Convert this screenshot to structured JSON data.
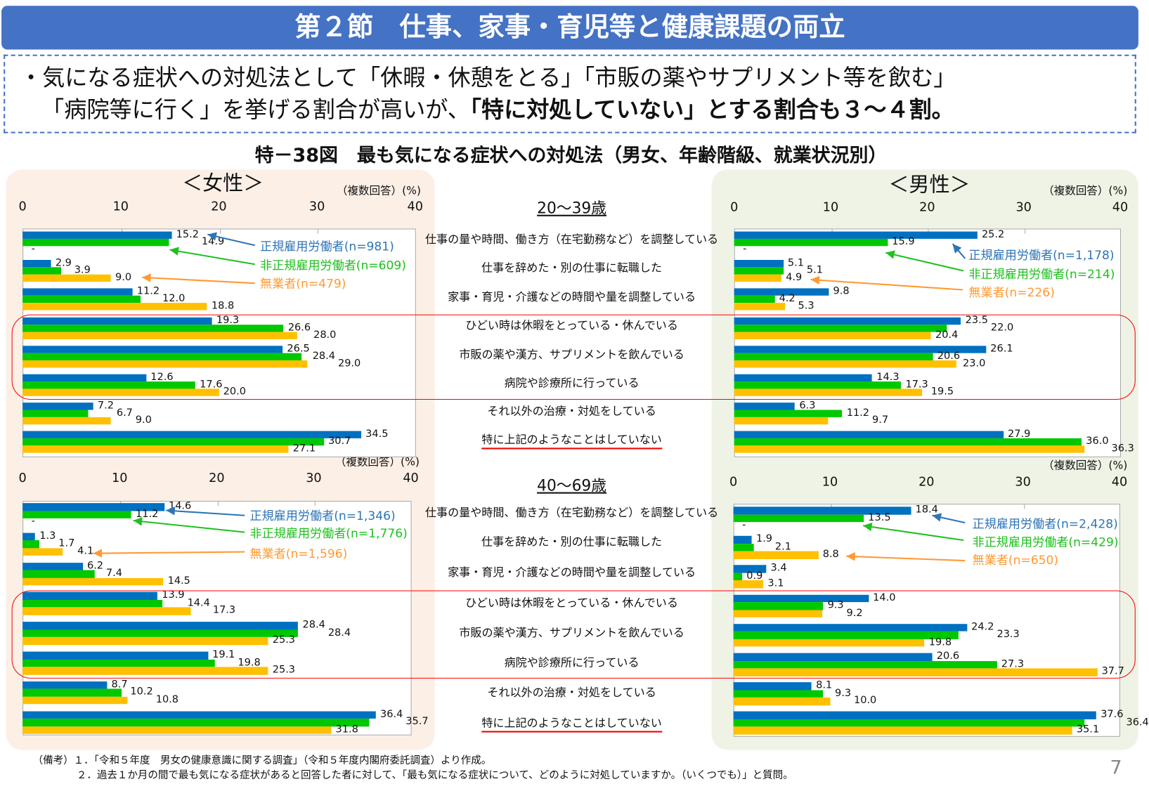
{
  "header": {
    "title": "第２節　仕事、家事・育児等と健康課題の両立"
  },
  "summary": {
    "line1": "・気になる症状への対処法として「休暇・休憩をとる」「市販の薬やサプリメント等を飲む」",
    "line2_normal": "「病院等に行く」を挙げる割合が高いが、",
    "line2_bold": "「特に対処していない」とする割合も３～４割。"
  },
  "figure_title": "特－38図　最も気になる症状への対処法（男女、年齢階級、就業状況別）",
  "panels": {
    "female": "＜女性＞",
    "male": "＜男性＞"
  },
  "unit_label": "（複数回答）(%)",
  "age_groups": [
    "20～39歳",
    "40～69歳"
  ],
  "colors": {
    "regular": "#0070c0",
    "nonregular": "#00c800",
    "unemployed": "#ffc000",
    "legend_regular": "#2e75b6",
    "legend_nonregular": "#1fc01f",
    "legend_unemployed": "#ff9933",
    "highlight": "#ff0000"
  },
  "chart_data": [
    {
      "type": "bar",
      "orientation": "horizontal",
      "panel": "女性",
      "age": "20～39歳",
      "xlim": [
        0,
        40
      ],
      "xticks": [
        "0",
        "10",
        "20",
        "30",
        "40"
      ],
      "grid": false,
      "categories": [
        "仕事の量や時間、働き方（在宅勤務など）を調整している",
        "仕事を辞めた・別の仕事に転職した",
        "家事・育児・介護などの時間や量を調整している",
        "ひどい時は休暇をとっている・休んでいる",
        "市販の薬や漢方、サプリメントを飲んでいる",
        "病院や診療所に行っている",
        "それ以外の治療・対処をしている",
        "特に上記のようなことはしていない"
      ],
      "series": [
        {
          "name": "正規雇用労働者(n=981)",
          "values": [
            15.2,
            2.9,
            11.2,
            19.3,
            26.5,
            12.6,
            7.2,
            34.5
          ]
        },
        {
          "name": "非正規雇用労働者(n=609)",
          "values": [
            14.9,
            3.9,
            12.0,
            26.6,
            28.4,
            17.6,
            6.7,
            30.7
          ]
        },
        {
          "name": "無業者(n=479)",
          "values": [
            null,
            9.0,
            18.8,
            28.0,
            29.0,
            20.0,
            9.0,
            27.1
          ]
        }
      ]
    },
    {
      "type": "bar",
      "orientation": "horizontal",
      "panel": "男性",
      "age": "20～39歳",
      "xlim": [
        0,
        40
      ],
      "xticks": [
        "0",
        "10",
        "20",
        "30",
        "40"
      ],
      "grid": false,
      "categories": [
        "仕事の量や時間、働き方（在宅勤務など）を調整している",
        "仕事を辞めた・別の仕事に転職した",
        "家事・育児・介護などの時間や量を調整している",
        "ひどい時は休暇をとっている・休んでいる",
        "市販の薬や漢方、サプリメントを飲んでいる",
        "病院や診療所に行っている",
        "それ以外の治療・対処をしている",
        "特に上記のようなことはしていない"
      ],
      "series": [
        {
          "name": "正規雇用労働者(n=1,178)",
          "values": [
            25.2,
            5.1,
            9.8,
            23.5,
            26.1,
            14.3,
            6.3,
            27.9
          ]
        },
        {
          "name": "非正規雇用労働者(n=214)",
          "values": [
            15.9,
            5.1,
            4.2,
            22.0,
            20.6,
            17.3,
            11.2,
            36.0
          ]
        },
        {
          "name": "無業者(n=226)",
          "values": [
            null,
            4.9,
            5.3,
            20.4,
            23.0,
            19.5,
            9.7,
            36.3
          ]
        }
      ]
    },
    {
      "type": "bar",
      "orientation": "horizontal",
      "panel": "女性",
      "age": "40～69歳",
      "xlim": [
        0,
        40
      ],
      "xticks": [
        "0",
        "10",
        "20",
        "30",
        "40"
      ],
      "grid": false,
      "categories": [
        "仕事の量や時間、働き方（在宅勤務など）を調整している",
        "仕事を辞めた・別の仕事に転職した",
        "家事・育児・介護などの時間や量を調整している",
        "ひどい時は休暇をとっている・休んでいる",
        "市販の薬や漢方、サプリメントを飲んでいる",
        "病院や診療所に行っている",
        "それ以外の治療・対処をしている",
        "特に上記のようなことはしていない"
      ],
      "series": [
        {
          "name": "正規雇用労働者(n=1,346)",
          "values": [
            14.6,
            1.3,
            6.2,
            13.9,
            28.4,
            19.1,
            8.7,
            36.4
          ]
        },
        {
          "name": "非正規雇用労働者(n=1,776)",
          "values": [
            11.2,
            1.7,
            7.4,
            14.4,
            28.4,
            19.8,
            10.2,
            35.7
          ]
        },
        {
          "name": "無業者(n=1,596)",
          "values": [
            null,
            4.1,
            14.5,
            17.3,
            25.3,
            25.3,
            10.8,
            31.8
          ]
        }
      ]
    },
    {
      "type": "bar",
      "orientation": "horizontal",
      "panel": "男性",
      "age": "40～69歳",
      "xlim": [
        0,
        40
      ],
      "xticks": [
        "0",
        "10",
        "20",
        "30",
        "40"
      ],
      "grid": false,
      "categories": [
        "仕事の量や時間、働き方（在宅勤務など）を調整している",
        "仕事を辞めた・別の仕事に転職した",
        "家事・育児・介護などの時間や量を調整している",
        "ひどい時は休暇をとっている・休んでいる",
        "市販の薬や漢方、サプリメントを飲んでいる",
        "病院や診療所に行っている",
        "それ以外の治療・対処をしている",
        "特に上記のようなことはしていない"
      ],
      "series": [
        {
          "name": "正規雇用労働者(n=2,428)",
          "values": [
            18.4,
            1.9,
            3.4,
            14.0,
            24.2,
            20.6,
            8.1,
            37.6
          ]
        },
        {
          "name": "非正規雇用労働者(n=429)",
          "values": [
            13.5,
            2.1,
            0.9,
            9.3,
            23.3,
            27.3,
            9.3,
            36.4
          ]
        },
        {
          "name": "無業者(n=650)",
          "values": [
            null,
            8.8,
            3.1,
            9.2,
            19.8,
            37.7,
            10.0,
            35.1
          ]
        }
      ]
    }
  ],
  "notes": [
    "（備考）１．「令和５年度　男女の健康意識に関する調査」（令和５年度内閣府委託調査）より作成。",
    "２．過去１か月の間で最も気になる症状があると回答した者に対して、「最も気になる症状について、どのように対処していますか。（いくつでも）」と質問。"
  ],
  "page_number": "7"
}
